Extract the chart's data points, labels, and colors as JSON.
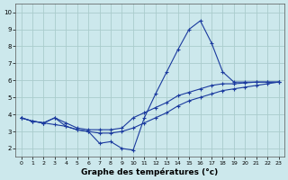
{
  "title": "Graphe des températures (°c)",
  "bg_color": "#cce8ec",
  "grid_color": "#aacccc",
  "line_color": "#1a3a9e",
  "xlim": [
    -0.5,
    23.5
  ],
  "ylim": [
    1.5,
    10.5
  ],
  "xticks": [
    0,
    1,
    2,
    3,
    4,
    5,
    6,
    7,
    8,
    9,
    10,
    11,
    12,
    13,
    14,
    15,
    16,
    17,
    18,
    19,
    20,
    21,
    22,
    23
  ],
  "yticks": [
    2,
    3,
    4,
    5,
    6,
    7,
    8,
    9,
    10
  ],
  "series1_x": [
    0,
    1,
    2,
    3,
    4,
    5,
    6,
    7,
    8,
    9,
    10,
    11,
    12,
    13,
    14,
    15,
    16,
    17,
    18,
    19,
    20,
    21,
    22,
    23
  ],
  "series1_y": [
    3.8,
    3.6,
    3.5,
    3.8,
    3.3,
    3.1,
    3.0,
    2.3,
    2.4,
    2.0,
    1.9,
    3.8,
    5.2,
    6.5,
    7.8,
    9.0,
    9.5,
    8.2,
    6.5,
    5.9,
    5.9,
    5.9,
    5.9,
    5.9
  ],
  "series2_x": [
    0,
    1,
    2,
    3,
    4,
    5,
    6,
    7,
    8,
    9,
    10,
    11,
    12,
    13,
    14,
    15,
    16,
    17,
    18,
    19,
    20,
    21,
    22,
    23
  ],
  "series2_y": [
    3.8,
    3.6,
    3.5,
    3.8,
    3.5,
    3.2,
    3.1,
    3.1,
    3.1,
    3.2,
    3.8,
    4.1,
    4.4,
    4.7,
    5.1,
    5.3,
    5.5,
    5.7,
    5.8,
    5.8,
    5.85,
    5.9,
    5.9,
    5.9
  ],
  "series3_x": [
    0,
    1,
    2,
    3,
    4,
    5,
    6,
    7,
    8,
    9,
    10,
    11,
    12,
    13,
    14,
    15,
    16,
    17,
    18,
    19,
    20,
    21,
    22,
    23
  ],
  "series3_y": [
    3.8,
    3.6,
    3.5,
    3.4,
    3.3,
    3.1,
    3.0,
    2.9,
    2.9,
    3.0,
    3.2,
    3.5,
    3.8,
    4.1,
    4.5,
    4.8,
    5.0,
    5.2,
    5.4,
    5.5,
    5.6,
    5.7,
    5.8,
    5.9
  ],
  "xlabel_size": 6.5,
  "tick_size": 5.0
}
